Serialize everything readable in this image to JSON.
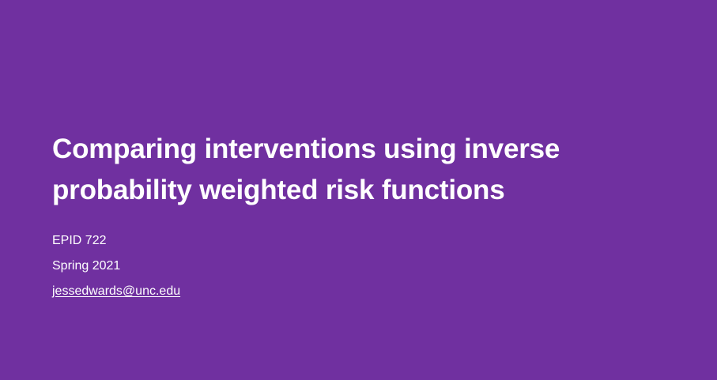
{
  "slide": {
    "background_color": "#7030a0",
    "text_color": "#ffffff",
    "title_lines": [
      "Comparing interventions using inverse",
      "probability weighted risk functions"
    ],
    "course": "EPID 722",
    "term": "Spring 2021",
    "email": "jessedwards@unc.edu"
  }
}
